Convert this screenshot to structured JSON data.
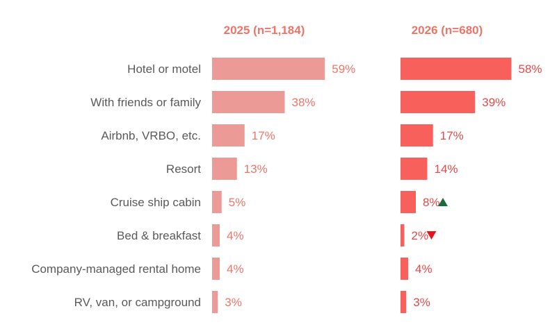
{
  "chart_data": {
    "type": "bar",
    "orientation": "horizontal",
    "categories": [
      "Hotel or motel",
      "With friends or family",
      "Airbnb, VRBO, etc.",
      "Resort",
      "Cruise ship cabin",
      "Bed & breakfast",
      "Company-managed rental home",
      "RV, van, or campground"
    ],
    "series": [
      {
        "name": "2025 (n=1,184)",
        "values": [
          59,
          38,
          17,
          13,
          5,
          4,
          4,
          3
        ],
        "labels": [
          "59%",
          "38%",
          "17%",
          "13%",
          "5%",
          "4%",
          "4%",
          "3%"
        ],
        "changes": [
          "",
          "",
          "",
          "",
          "",
          "",
          "",
          ""
        ]
      },
      {
        "name": "2026 (n=680)",
        "values": [
          58,
          39,
          17,
          14,
          8,
          2,
          4,
          3
        ],
        "labels": [
          "58%",
          "39%",
          "17%",
          "14%",
          "8%",
          "2%",
          "4%",
          "3%"
        ],
        "changes": [
          "",
          "",
          "",
          "",
          "up",
          "down",
          "",
          ""
        ]
      }
    ],
    "unit": "%",
    "xlim": [
      0,
      70
    ],
    "grid": false,
    "legend": "none"
  },
  "colors": {
    "series_2025": "#ec9a96",
    "series_2026": "#f8605c",
    "title": "#ef7468",
    "label_2025": "#ef7468",
    "label_2026": "#e24848",
    "category_text": "#595959",
    "up_marker": "#1a6b3c",
    "down_marker": "#e8141c"
  }
}
